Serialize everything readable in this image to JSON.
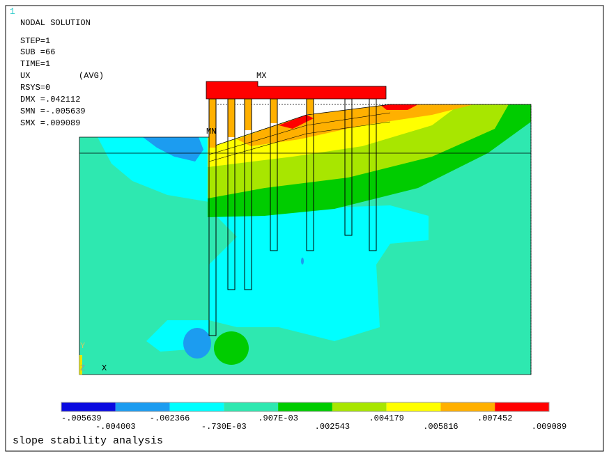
{
  "window_number": "1",
  "info": [
    "NODAL SOLUTION",
    "STEP=1",
    "SUB =66",
    "TIME=1",
    "UX",
    "(AVG)",
    "RSYS=0",
    "DMX =.042112",
    "SMN =-.005639",
    "SMX =.009089"
  ],
  "markers": {
    "max": "MX",
    "min": "MN"
  },
  "triad": {
    "y": "Y",
    "z": "Z",
    "x": "X"
  },
  "legend": {
    "colors": [
      "#0a0ae0",
      "#1c9cf0",
      "#00ffff",
      "#2ee8b0",
      "#00cc00",
      "#a8e600",
      "#ffff00",
      "#ffb000",
      "#ff0000"
    ],
    "labels": [
      "-.005639",
      "-.004003",
      "-.002366",
      "-.730E-03",
      ".907E-03",
      ".002543",
      ".004179",
      ".005816",
      ".007452",
      ".009089"
    ]
  },
  "footer": "slope stability analysis"
}
